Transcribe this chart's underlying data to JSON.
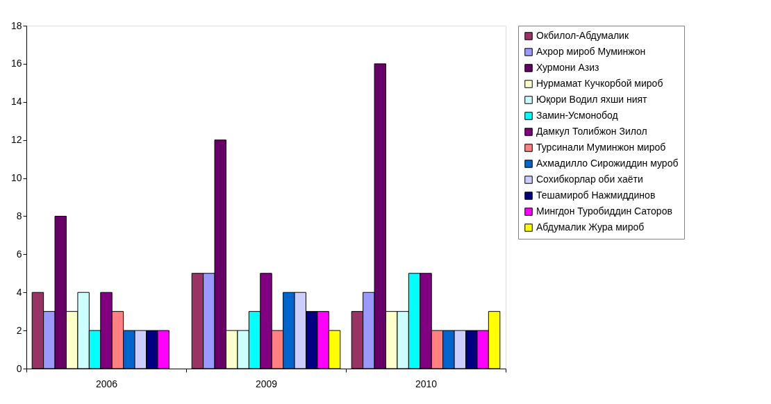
{
  "chart_data": {
    "type": "bar",
    "categories": [
      "2006",
      "2009",
      "2010"
    ],
    "ylim": [
      0,
      18
    ],
    "yticks": [
      0,
      2,
      4,
      6,
      8,
      10,
      12,
      14,
      16,
      18
    ],
    "grid": false,
    "legend": "right",
    "series": [
      {
        "name": "Окбилол-Абдумалик",
        "color": "#993366",
        "values": [
          4,
          5,
          3
        ]
      },
      {
        "name": "Ахрор  мироб Муминжон",
        "color": "#9999ff",
        "values": [
          3,
          5,
          4
        ]
      },
      {
        "name": "Хурмони Азиз",
        "color": "#660066",
        "values": [
          8,
          12,
          16
        ]
      },
      {
        "name": "Нурмамат Кучкорбой мироб",
        "color": "#ffffcc",
        "values": [
          3,
          2,
          3
        ]
      },
      {
        "name": "Юқори Водил яхши ният",
        "color": "#ccffff",
        "values": [
          4,
          2,
          3
        ]
      },
      {
        "name": "Замин-Усмонобод",
        "color": "#00ffff",
        "values": [
          2,
          3,
          5
        ]
      },
      {
        "name": "Дамкул Толибжон Зилол",
        "color": "#800080",
        "values": [
          4,
          5,
          5
        ]
      },
      {
        "name": "Турсинали Муминжон мироб",
        "color": "#ff8080",
        "values": [
          3,
          2,
          2
        ]
      },
      {
        "name": "Ахмадилло Сирожиддин муроб",
        "color": "#0066cc",
        "values": [
          2,
          4,
          2
        ]
      },
      {
        "name": "Сохибкорлар оби хаёти",
        "color": "#ccccff",
        "values": [
          2,
          4,
          2
        ]
      },
      {
        "name": "Тешамироб Нажмиддинов",
        "color": "#000080",
        "values": [
          2,
          3,
          2
        ]
      },
      {
        "name": "Мингдон Туробиддин Саторов",
        "color": "#ff00ff",
        "values": [
          2,
          3,
          2
        ]
      },
      {
        "name": "Абдумалик Жура мироб",
        "color": "#ffff00",
        "values": [
          null,
          2,
          3
        ]
      }
    ]
  }
}
